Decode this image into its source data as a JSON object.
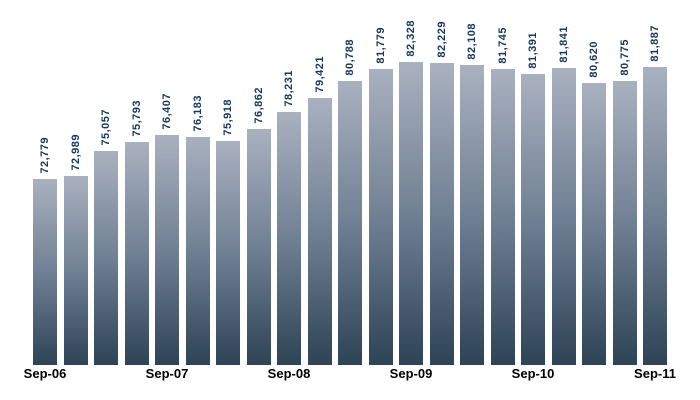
{
  "chart_data": {
    "type": "bar",
    "title": "",
    "xlabel": "",
    "ylabel": "",
    "values": [
      72779,
      72989,
      75057,
      75793,
      76407,
      76183,
      75918,
      76862,
      78231,
      79421,
      80788,
      81779,
      82328,
      82229,
      82108,
      81745,
      81391,
      81841,
      80620,
      80775,
      81887
    ],
    "value_labels": [
      "72,779",
      "72,989",
      "75,057",
      "75,793",
      "76,407",
      "76,183",
      "75,918",
      "76,862",
      "78,231",
      "79,421",
      "80,788",
      "81,779",
      "82,328",
      "82,229",
      "82,108",
      "81,745",
      "81,391",
      "81,841",
      "80,620",
      "80,775",
      "81,887"
    ],
    "x_ticks": [
      {
        "index": 0,
        "label": "Sep-06"
      },
      {
        "index": 4,
        "label": "Sep-07"
      },
      {
        "index": 8,
        "label": "Sep-08"
      },
      {
        "index": 12,
        "label": "Sep-09"
      },
      {
        "index": 16,
        "label": "Sep-10"
      },
      {
        "index": 20,
        "label": "Sep-11"
      }
    ],
    "ylim": [
      57600,
      82330
    ],
    "grid": false,
    "legend_position": "none",
    "value_labels_rotated": true,
    "colors": {
      "bar_gradient_top": "#a9b1bf",
      "bar_gradient_mid": "#6e7e92",
      "bar_gradient_bottom": "#2e4356",
      "value_label": "#17375e",
      "axis_label": "#000000",
      "background": "#ffffff"
    }
  }
}
